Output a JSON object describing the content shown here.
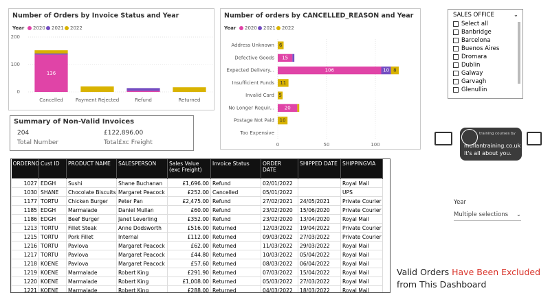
{
  "chart_data": [
    {
      "type": "bar",
      "orientation": "vertical",
      "stacked": true,
      "title": "Number of Orders by Invoice Status and Year",
      "legend_title": "Year",
      "categories": [
        "Cancelled",
        "Payment Rejected",
        "Refund",
        "Returned"
      ],
      "series": [
        {
          "name": "2020",
          "color": "#e044a7",
          "values": [
            136,
            null,
            4,
            null
          ]
        },
        {
          "name": "2021",
          "color": "#744ec2",
          "values": [
            4,
            null,
            10,
            null
          ]
        },
        {
          "name": "2022",
          "color": "#d9b300",
          "values": [
            12,
            20,
            null,
            17
          ]
        }
      ],
      "ylim": [
        0,
        200
      ],
      "yticks": [
        0,
        100,
        200
      ],
      "grid": true
    },
    {
      "type": "bar",
      "orientation": "horizontal",
      "stacked": true,
      "title": "Number of orders by CANCELLED_REASON and Year",
      "legend_title": "Year",
      "categories": [
        "Address Unknown",
        "Defective Goods",
        "Expected Delivery...",
        "Insufficient Funds",
        "Invalid Card",
        "No Longer Requir...",
        "Postage Not Paid",
        "Too Expensive"
      ],
      "series": [
        {
          "name": "2020",
          "color": "#e044a7",
          "values": [
            null,
            15,
            106,
            null,
            null,
            20,
            null,
            null
          ]
        },
        {
          "name": "2021",
          "color": "#744ec2",
          "values": [
            null,
            2,
            10,
            null,
            null,
            null,
            null,
            null
          ]
        },
        {
          "name": "2022",
          "color": "#d9b300",
          "values": [
            6,
            null,
            8,
            11,
            5,
            2,
            10,
            null
          ]
        }
      ],
      "xlim": [
        0,
        125
      ],
      "xticks": [
        0,
        50,
        100
      ],
      "grid": true
    }
  ],
  "summary": {
    "title": "Summary of Non-Valid Invoices",
    "count": "204",
    "count_label": "Total Number",
    "amount": "£122,896.00",
    "amount_label": "Total£xc Freight"
  },
  "sales_office": {
    "title": "SALES OFFICE",
    "items": [
      "Select all",
      "Banbridge",
      "Barcelona",
      "Buenos Aires",
      "Dromara",
      "Dublin",
      "Galway",
      "Garvagh",
      "Glenullin"
    ]
  },
  "logo": {
    "tagline_top": "training courses by",
    "brand": "mullantraining.co.uk",
    "tagline": "it's all about you."
  },
  "year_slicer": {
    "label": "Year",
    "value": "Multiple selections"
  },
  "note": [
    "Valid Orders",
    "Have Been Excluded",
    "from This Dashboard"
  ],
  "table": {
    "columns": [
      "ORDERNO",
      "Cust ID",
      "PRODUCT NAME",
      "SALESPERSON",
      "Sales Value (exc Freight)",
      "Invoice Status",
      "ORDER DATE",
      "SHIPPED DATE",
      "SHIPPINGVIA"
    ],
    "rows": [
      [
        "1027",
        "EDGH",
        "Sushi",
        "Shane Buchanan",
        "£1,696.00",
        "Refund",
        "02/01/2022",
        null,
        "Royal Mail"
      ],
      [
        "1030",
        "SHANE",
        "Chocolate Biscuits",
        "Margaret Peacock",
        "£252.00",
        "Cancelled",
        "05/01/2022",
        null,
        "UPS"
      ],
      [
        "1177",
        "TORTU",
        "Chicken Burger",
        "Peter Pan",
        "£2,475.00",
        "Refund",
        "27/02/2021",
        "24/05/2021",
        "Private Courier"
      ],
      [
        "1185",
        "EDGH",
        "Marmalade",
        "Daniel Mullan",
        "£60.00",
        "Refund",
        "23/02/2020",
        "15/06/2020",
        "Private Courier"
      ],
      [
        "1186",
        "EDGH",
        "Beef Burger",
        "Janet Leverling",
        "£352.00",
        "Refund",
        "23/02/2020",
        "13/04/2020",
        "Royal Mail"
      ],
      [
        "1213",
        "TORTU",
        "Fillet Steak",
        "Anne Dodsworth",
        "£516.00",
        "Returned",
        "12/03/2022",
        "19/04/2022",
        "Private Courier"
      ],
      [
        "1215",
        "TORTU",
        "Pork Fillet",
        "Internal",
        "£112.00",
        "Returned",
        "09/03/2022",
        "27/03/2022",
        "Private Courier"
      ],
      [
        "1216",
        "TORTU",
        "Pavlova",
        "Margaret Peacock",
        "£62.00",
        "Returned",
        "11/03/2022",
        "29/03/2022",
        "Royal Mail"
      ],
      [
        "1217",
        "TORTU",
        "Pavlova",
        "Margaret Peacock",
        "£44.80",
        "Returned",
        "10/03/2022",
        "05/04/2022",
        "Royal Mail"
      ],
      [
        "1218",
        "KOENE",
        "Pavlova",
        "Margaret Peacock",
        "£57.60",
        "Returned",
        "08/03/2022",
        "06/04/2022",
        "Royal Mail"
      ],
      [
        "1219",
        "KOENE",
        "Marmalade",
        "Robert King",
        "£291.90",
        "Returned",
        "07/03/2022",
        "15/04/2022",
        "Royal Mail"
      ],
      [
        "1220",
        "KOENE",
        "Marmalade",
        "Robert King",
        "£1,008.00",
        "Returned",
        "05/03/2022",
        "27/03/2022",
        "Royal Mail"
      ],
      [
        "1221",
        "KOENE",
        "Marmalade",
        "Robert King",
        "£288.00",
        "Returned",
        "04/03/2022",
        "18/03/2022",
        "Royal Mail"
      ]
    ]
  }
}
